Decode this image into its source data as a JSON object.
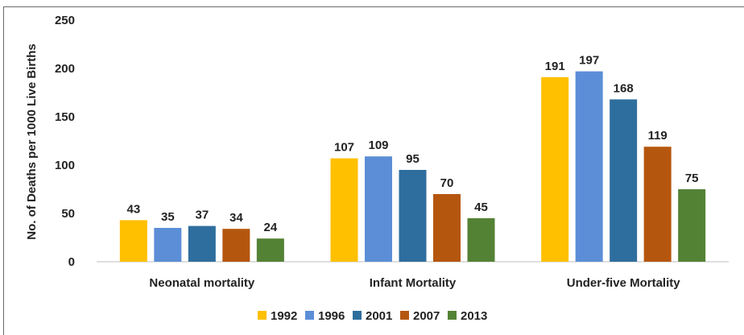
{
  "chart_data": {
    "type": "bar",
    "categories": [
      "Neonatal mortality",
      "Infant Mortality",
      "Under-five Mortality"
    ],
    "series": [
      {
        "name": "1992",
        "color": "#FFC000",
        "values": [
          43,
          107,
          191
        ]
      },
      {
        "name": "1996",
        "color": "#5B8ED6",
        "values": [
          35,
          109,
          197
        ]
      },
      {
        "name": "2001",
        "color": "#2E6E9E",
        "values": [
          37,
          95,
          168
        ]
      },
      {
        "name": "2007",
        "color": "#B5560F",
        "values": [
          34,
          70,
          119
        ]
      },
      {
        "name": "2013",
        "color": "#548235",
        "values": [
          24,
          45,
          75
        ]
      }
    ],
    "title": "",
    "xlabel": "",
    "ylabel": "No. of Deaths per 1000 Live Births",
    "ylim": [
      0,
      250
    ],
    "yticks": [
      0,
      50,
      100,
      150,
      200,
      250
    ],
    "grid": false,
    "legend": "bottom",
    "data_labels": true
  }
}
